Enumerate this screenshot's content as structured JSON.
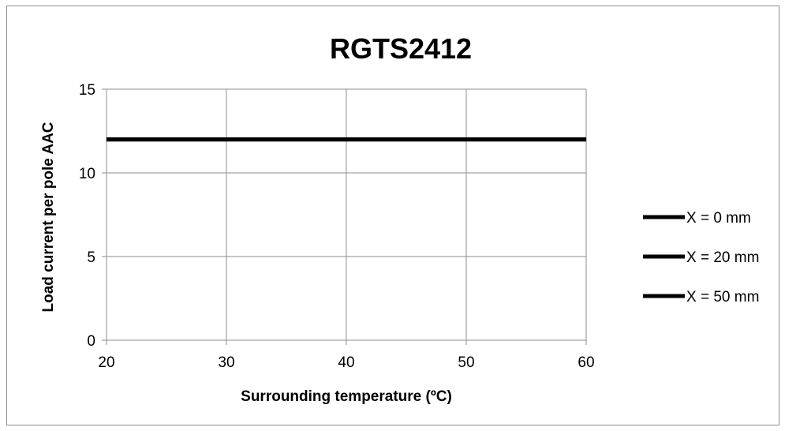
{
  "chart_data": {
    "type": "line",
    "title": "RGTS2412",
    "xlabel": "Surrounding temperature (ºC)",
    "ylabel": "Load current per pole AAC",
    "xlim": [
      20,
      60
    ],
    "ylim": [
      0,
      15
    ],
    "x_ticks": [
      "20",
      "30",
      "40",
      "50",
      "60"
    ],
    "y_ticks": [
      "0",
      "5",
      "10",
      "15"
    ],
    "grid": true,
    "legend_position": "right",
    "series": [
      {
        "name": "X = 0 mm",
        "color": "#000000",
        "x": [
          20,
          60
        ],
        "y": [
          12,
          12
        ]
      },
      {
        "name": "X = 20 mm",
        "color": "#000000",
        "x": [
          20,
          60
        ],
        "y": [
          12,
          12
        ]
      },
      {
        "name": "X = 50 mm",
        "color": "#000000",
        "x": [
          20,
          60
        ],
        "y": [
          12,
          12
        ]
      }
    ]
  }
}
